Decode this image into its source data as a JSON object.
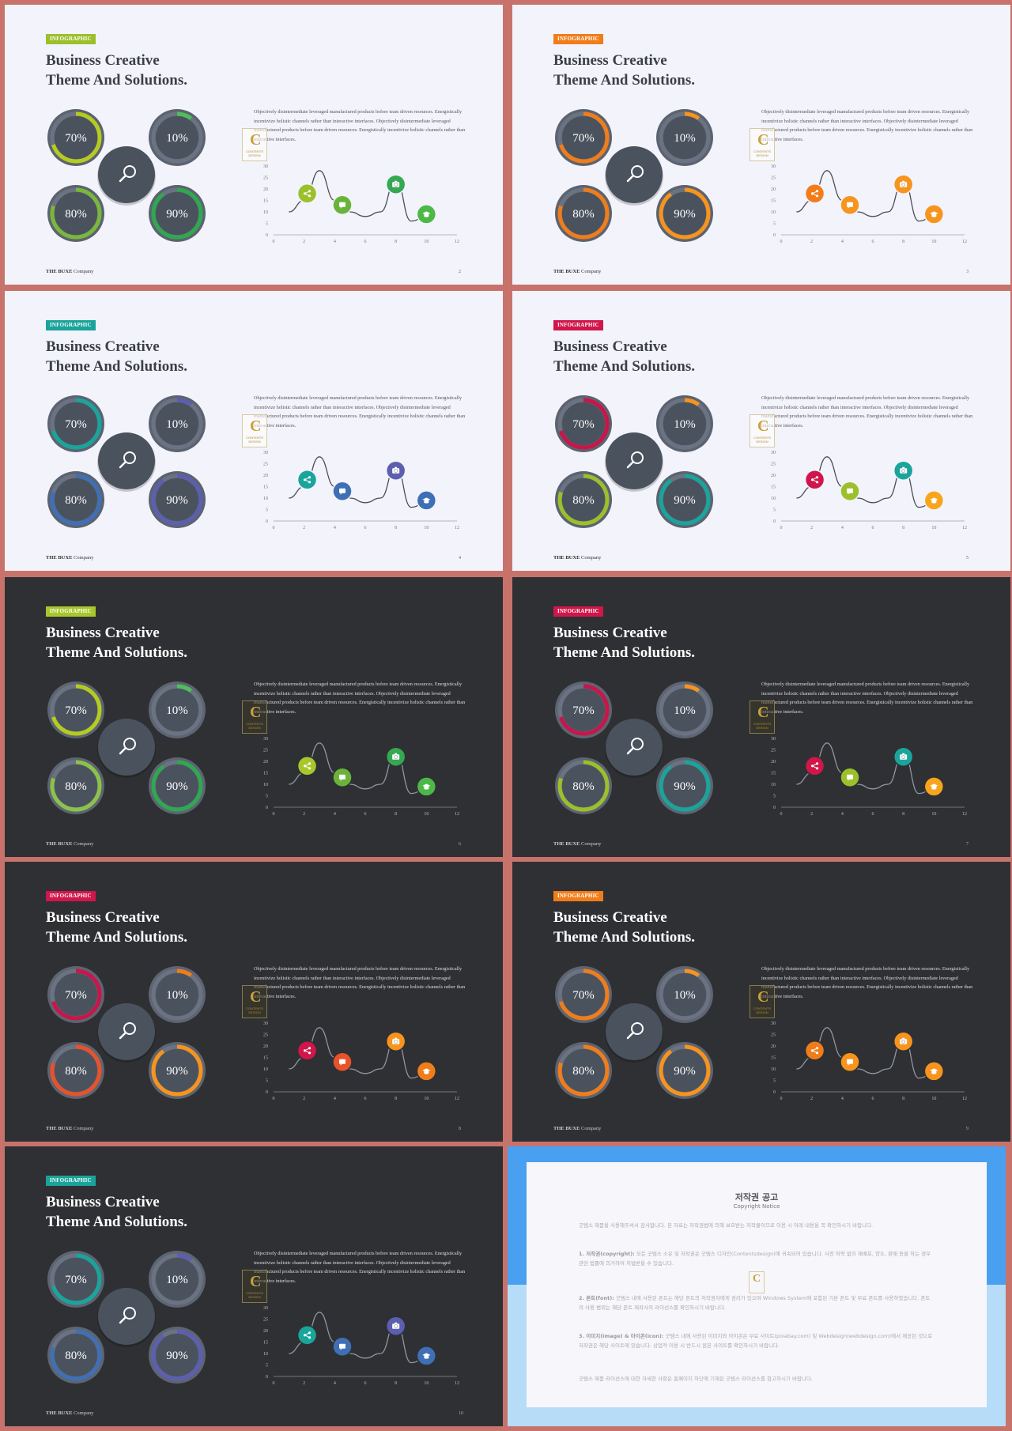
{
  "common": {
    "tag": "INFOGRAPHIC",
    "title_line1": "Business Creative",
    "title_line2": "Theme And Solutions.",
    "description": "Objectively disintermediate leveraged manufactured products before team driven resources. Energistically incentivize holistic channels rather than interactive interfaces. Objectively disintermediate leveraged manufactured products before team driven resources. Energistically incentivize holistic channels rather than interactive interfaces.",
    "footer_brand": "THE BUXE",
    "footer_company": "Company",
    "logo_letter": "C",
    "logo_text": "CONTENTS DESIGN",
    "percent_labels": [
      "70%",
      "10%",
      "80%",
      "90%"
    ],
    "percent_values": [
      70,
      10,
      80,
      90
    ],
    "center_icon": "search-icon",
    "chart_icons": [
      "share-icon",
      "chat-icon",
      "camera-icon",
      "graduation-cap-icon"
    ]
  },
  "chart_data": {
    "type": "line",
    "x_ticks": [
      0,
      2,
      4,
      6,
      8,
      10,
      12
    ],
    "y_ticks": [
      0,
      5,
      10,
      15,
      20,
      25,
      30
    ],
    "xlim": [
      0,
      12
    ],
    "ylim": [
      0,
      30
    ],
    "series": [
      {
        "x": [
          1,
          2,
          3,
          4,
          5,
          6,
          7,
          8,
          9,
          10
        ],
        "values": [
          10,
          15,
          28,
          15,
          10,
          8,
          10,
          24,
          6,
          8
        ]
      }
    ],
    "markers": [
      {
        "x": 2.2,
        "y": 18,
        "icon": "share-icon"
      },
      {
        "x": 4.5,
        "y": 13,
        "icon": "chat-icon"
      },
      {
        "x": 8.0,
        "y": 22,
        "icon": "camera-icon"
      },
      {
        "x": 10.0,
        "y": 9,
        "icon": "graduation-cap-icon"
      }
    ]
  },
  "slides": [
    {
      "page": "2",
      "theme": "light",
      "tag_color": "#9bc02b",
      "ring_colors": [
        "#b5cc1f",
        "#4fbf5a",
        "#79b83a",
        "#2fa84f"
      ],
      "marker_colors": [
        "#9bc02b",
        "#6ab33a",
        "#34a853",
        "#4cb847"
      ]
    },
    {
      "page": "3",
      "theme": "light",
      "tag_color": "#f07d1a",
      "ring_colors": [
        "#f07d1a",
        "#f7941d",
        "#f07d1a",
        "#f7941d"
      ],
      "marker_colors": [
        "#f07d1a",
        "#f7941d",
        "#f7941d",
        "#f7941d"
      ]
    },
    {
      "page": "4",
      "theme": "light",
      "tag_color": "#1aa39a",
      "ring_colors": [
        "#19a59b",
        "#5c5fb0",
        "#3f6fb5",
        "#5c5fb0"
      ],
      "marker_colors": [
        "#19a59b",
        "#3f6fb5",
        "#5c5fb0",
        "#3f6fb5"
      ]
    },
    {
      "page": "5",
      "theme": "light",
      "tag_color": "#d0164a",
      "ring_colors": [
        "#c8154a",
        "#f7941d",
        "#9bc02b",
        "#19a59b"
      ],
      "marker_colors": [
        "#d0164a",
        "#9bc02b",
        "#19a59b",
        "#f7a51d"
      ]
    },
    {
      "page": "6",
      "theme": "dark",
      "tag_color": "#a8c72b",
      "ring_colors": [
        "#b5cc1f",
        "#4fbf5a",
        "#8bc34a",
        "#2fa84f"
      ],
      "marker_colors": [
        "#a8c72b",
        "#6ab33a",
        "#34a853",
        "#4cb847"
      ]
    },
    {
      "page": "7",
      "theme": "dark",
      "tag_color": "#d0164a",
      "ring_colors": [
        "#c8154a",
        "#f7941d",
        "#9bc02b",
        "#19a59b"
      ],
      "marker_colors": [
        "#d0164a",
        "#9bc02b",
        "#19a59b",
        "#f7a51d"
      ]
    },
    {
      "page": "8",
      "theme": "dark",
      "tag_color": "#d0164a",
      "ring_colors": [
        "#c8154a",
        "#f07d1a",
        "#e8522a",
        "#f7941d"
      ],
      "marker_colors": [
        "#d0164a",
        "#e8522a",
        "#f7941d",
        "#f07d1a"
      ]
    },
    {
      "page": "9",
      "theme": "dark",
      "tag_color": "#f07d1a",
      "ring_colors": [
        "#f07d1a",
        "#f7941d",
        "#f07d1a",
        "#f7941d"
      ],
      "marker_colors": [
        "#f07d1a",
        "#f7941d",
        "#f7941d",
        "#f7941d"
      ]
    },
    {
      "page": "10",
      "theme": "dark",
      "tag_color": "#1aa39a",
      "ring_colors": [
        "#19a59b",
        "#5c5fb0",
        "#3f6fb5",
        "#5c5fb0"
      ],
      "marker_colors": [
        "#19a59b",
        "#3f6fb5",
        "#5c5fb0",
        "#3f6fb5"
      ]
    }
  ],
  "copyright": {
    "title": "저작권 공고",
    "subtitle": "Copyright Notice",
    "para_intro": "굿템스 제품을 사용해주셔서 감사합니다. 본 자료는 저작권법에 의해 보호받는 저작물이므로 이용 시 아래 내용을 꼭 확인하시기 바랍니다.",
    "para1_head": "1. 저작권(copyright):",
    "para1_body": "모든 굿템스 소유 및 저작권은 굿템스 디자인(Contentsdesign)에 귀속되어 있습니다. 사전 허락 없이 재배포, 양도, 판매 등을 하는 경우 관련 법률에 의거하여 처벌받을 수 있습니다.",
    "para2_head": "2. 폰트(font):",
    "para2_body": "굿템스 내에 사용된 폰트는 해당 폰트의 저작권자에게 권리가 있으며 Windows System에 포함된 기본 폰트 및 무료 폰트를 사용하였습니다. 폰트의 사용 범위는 해당 폰트 제작사의 라이선스를 확인하시기 바랍니다.",
    "para3_head": "3. 이미지(image) & 아이콘(icon):",
    "para3_body": "굿템스 내에 사용된 이미지와 아이콘은 무료 사이트(pixabay.com) 및 Webdesign(webdesign.com)에서 제공된 것으로 저작권은 해당 사이트에 있습니다. 상업적 이용 시 반드시 원본 사이트를 확인하시기 바랍니다.",
    "para_outro": "굿템스 제품 라이선스에 대한 자세한 사항은 홈페이지 하단에 기재된 굿템스 라이선스를 참고하시기 바랍니다."
  }
}
